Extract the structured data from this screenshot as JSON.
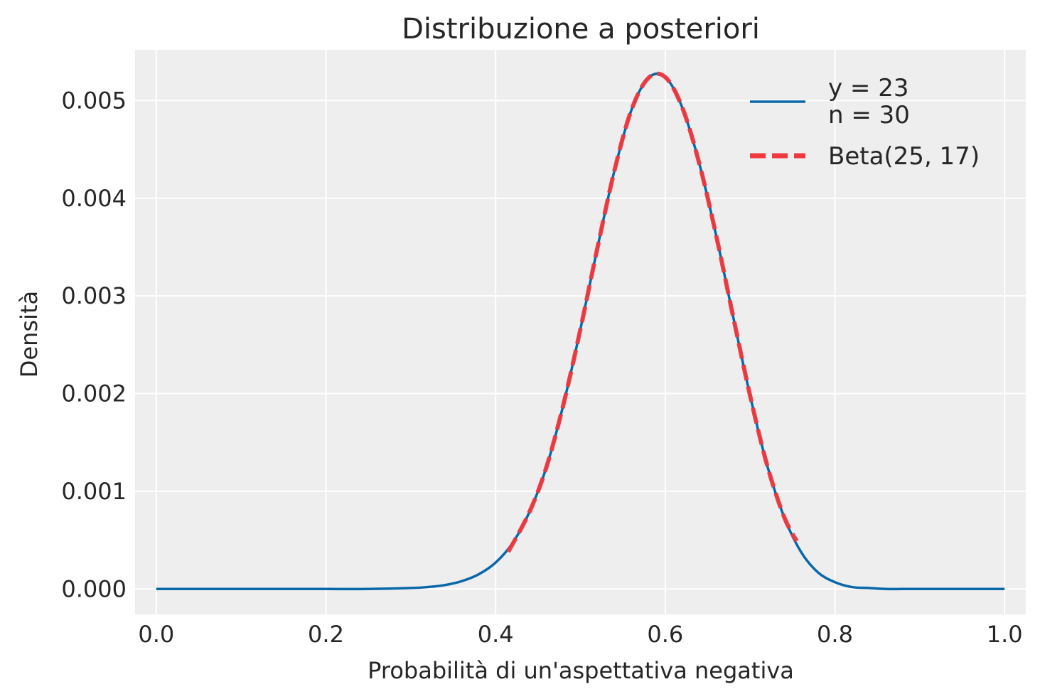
{
  "chart_data": {
    "type": "line",
    "title": "Distribuzione a posteriori",
    "xlabel": "Probabilità di un'aspettativa negativa",
    "ylabel": "Densità",
    "xlim": [
      -0.025,
      1.025
    ],
    "ylim": [
      -0.00026,
      0.00552
    ],
    "xticks": [
      0.0,
      0.2,
      0.4,
      0.6,
      0.8,
      1.0
    ],
    "xtick_labels": [
      "0.0",
      "0.2",
      "0.4",
      "0.6",
      "0.8",
      "1.0"
    ],
    "yticks": [
      0.0,
      0.001,
      0.002,
      0.003,
      0.004,
      0.005
    ],
    "ytick_labels": [
      "0.000",
      "0.001",
      "0.002",
      "0.003",
      "0.004",
      "0.005"
    ],
    "grid": true,
    "legend_position": "top-right",
    "series": [
      {
        "name": "y = 23\nn = 30",
        "legend_lines": [
          "y = 23",
          "n = 30"
        ],
        "color": "#0868a8",
        "style": "solid",
        "x": [
          0.0,
          0.05,
          0.1,
          0.15,
          0.2,
          0.25,
          0.3,
          0.32,
          0.34,
          0.36,
          0.38,
          0.4,
          0.42,
          0.44,
          0.46,
          0.48,
          0.5,
          0.52,
          0.54,
          0.56,
          0.58,
          0.6,
          0.62,
          0.64,
          0.66,
          0.68,
          0.7,
          0.72,
          0.74,
          0.76,
          0.78,
          0.8,
          0.82,
          0.84,
          0.86,
          0.88,
          0.9,
          0.95,
          1.0
        ],
        "y": [
          0.0,
          0.0,
          0.0,
          0.0,
          0.0,
          0.0,
          1e-05,
          2e-05,
          4e-05,
          8e-05,
          0.00015,
          0.00027,
          0.00047,
          0.00079,
          0.00125,
          0.00189,
          0.00266,
          0.00349,
          0.00428,
          0.0049,
          0.00523,
          0.00524,
          0.00493,
          0.00436,
          0.00362,
          0.00279,
          0.00198,
          0.00127,
          0.00074,
          0.00038,
          0.00017,
          7e-05,
          2e-05,
          1e-05,
          0.0,
          0.0,
          0.0,
          0.0,
          0.0
        ]
      },
      {
        "name": "Beta(25, 17)",
        "legend_lines": [
          "Beta(25, 17)"
        ],
        "color": "#f0383d",
        "style": "dashed",
        "x": [
          0.415,
          0.44,
          0.46,
          0.48,
          0.5,
          0.52,
          0.54,
          0.56,
          0.58,
          0.6,
          0.62,
          0.64,
          0.66,
          0.68,
          0.7,
          0.72,
          0.74,
          0.755
        ],
        "y": [
          0.00038,
          0.00079,
          0.00125,
          0.00189,
          0.00266,
          0.00349,
          0.00428,
          0.0049,
          0.00523,
          0.00524,
          0.00493,
          0.00436,
          0.00362,
          0.00279,
          0.00198,
          0.00127,
          0.00074,
          0.00049
        ]
      }
    ]
  }
}
